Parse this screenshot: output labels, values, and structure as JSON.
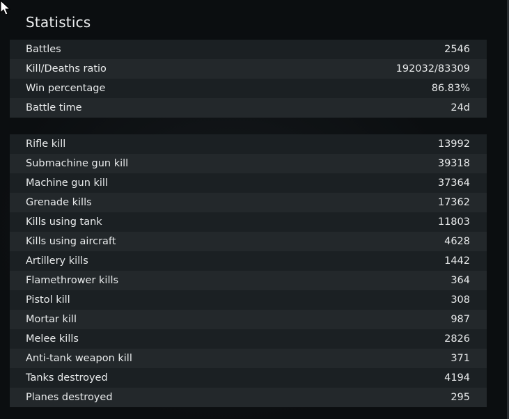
{
  "title": "Statistics",
  "summary": [
    {
      "label": "Battles",
      "value": "2546"
    },
    {
      "label": "Kill/Deaths ratio",
      "value": "192032/83309"
    },
    {
      "label": "Win percentage",
      "value": "86.83%"
    },
    {
      "label": "Battle time",
      "value": "24d"
    }
  ],
  "weapons": [
    {
      "label": "Rifle kill",
      "value": "13992"
    },
    {
      "label": "Submachine gun kill",
      "value": "39318"
    },
    {
      "label": "Machine gun kill",
      "value": "37364"
    },
    {
      "label": "Grenade kills",
      "value": "17362"
    },
    {
      "label": "Kills using tank",
      "value": "11803"
    },
    {
      "label": "Kills using aircraft",
      "value": "4628"
    },
    {
      "label": "Artillery kills",
      "value": "1442"
    },
    {
      "label": "Flamethrower kills",
      "value": "364"
    },
    {
      "label": "Pistol kill",
      "value": "308"
    },
    {
      "label": "Mortar kill",
      "value": "987"
    },
    {
      "label": "Melee kills",
      "value": "2826"
    },
    {
      "label": "Anti-tank weapon kill",
      "value": "371"
    },
    {
      "label": "Tanks destroyed",
      "value": "4194"
    },
    {
      "label": "Planes destroyed",
      "value": "295"
    }
  ]
}
